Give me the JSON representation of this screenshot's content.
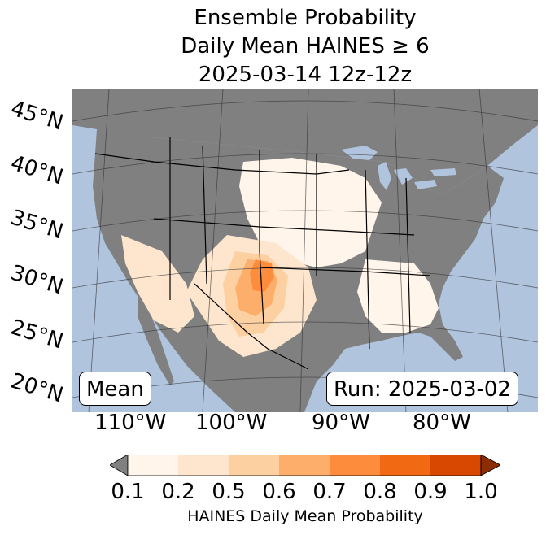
{
  "title": {
    "line1": "Ensemble Probability",
    "line2": "Daily Mean HAINES ≥ 6",
    "line3": "2025-03-14 12z-12z"
  },
  "map": {
    "lat_labels": [
      "45°N",
      "40°N",
      "35°N",
      "30°N",
      "25°N",
      "20°N"
    ],
    "lon_labels": [
      "110°W",
      "100°W",
      "90°W",
      "80°W"
    ],
    "stat_label": "Mean",
    "run_label": "Run: 2025-03-02",
    "colors": {
      "ocean": "#b0c4de",
      "land_masked": "#808080",
      "border": "#000000"
    }
  },
  "colorbar": {
    "label": "HAINES Daily Mean Probability",
    "ticks": [
      "0.1",
      "0.2",
      "0.5",
      "0.6",
      "0.7",
      "0.8",
      "0.9",
      "1.0"
    ],
    "colors": [
      "#fff5eb",
      "#fee6ce",
      "#fdd0a2",
      "#fdae6b",
      "#fd8d3c",
      "#f16913",
      "#d94801"
    ],
    "under_color": "#808080",
    "over_color": "#8c2d04"
  }
}
